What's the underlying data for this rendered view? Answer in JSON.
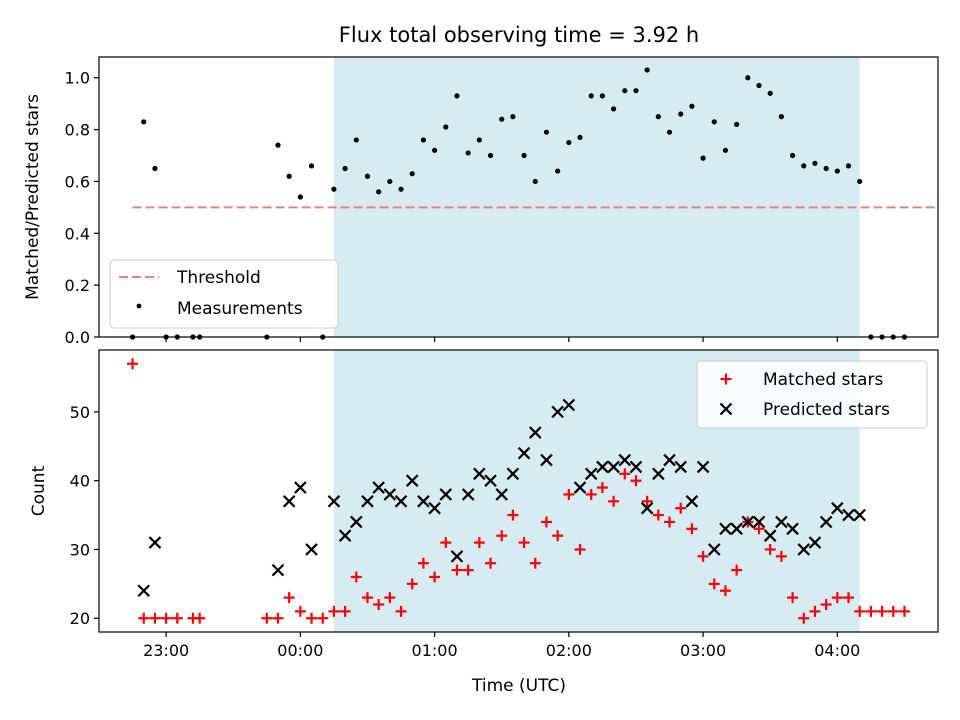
{
  "chart_data": [
    {
      "type": "scatter",
      "title": "Flux total observing time = 3.92 h",
      "ylabel": "Matched/Predicted stars",
      "xlabel": "",
      "xlim": [
        "22:30",
        "04:45"
      ],
      "ylim": [
        0,
        1.08
      ],
      "yticks": [
        "0.0",
        "0.2",
        "0.4",
        "0.6",
        "0.8",
        "1.0"
      ],
      "shaded_interval": [
        "00:15",
        "04:10"
      ],
      "shade_color": "#add8e6",
      "threshold": {
        "name": "Threshold",
        "value": 0.5,
        "x": [
          "22:45",
          "04:45"
        ],
        "color": "#f08080"
      },
      "series": [
        {
          "name": "Measurements",
          "marker": "dot",
          "color": "#000000",
          "points": [
            [
              "22:45",
              0.0
            ],
            [
              "22:50",
              0.83
            ],
            [
              "22:55",
              0.65
            ],
            [
              "23:00",
              0.0
            ],
            [
              "23:05",
              0.0
            ],
            [
              "23:12",
              0.0
            ],
            [
              "23:15",
              0.0
            ],
            [
              "23:45",
              0.0
            ],
            [
              "23:50",
              0.74
            ],
            [
              "23:55",
              0.62
            ],
            [
              "00:00",
              0.54
            ],
            [
              "00:05",
              0.66
            ],
            [
              "00:10",
              0.0
            ],
            [
              "00:15",
              0.57
            ],
            [
              "00:20",
              0.65
            ],
            [
              "00:25",
              0.76
            ],
            [
              "00:30",
              0.62
            ],
            [
              "00:35",
              0.56
            ],
            [
              "00:40",
              0.6
            ],
            [
              "00:45",
              0.57
            ],
            [
              "00:50",
              0.63
            ],
            [
              "00:55",
              0.76
            ],
            [
              "01:00",
              0.72
            ],
            [
              "01:05",
              0.81
            ],
            [
              "01:10",
              0.93
            ],
            [
              "01:15",
              0.71
            ],
            [
              "01:20",
              0.76
            ],
            [
              "01:25",
              0.7
            ],
            [
              "01:30",
              0.84
            ],
            [
              "01:35",
              0.85
            ],
            [
              "01:40",
              0.7
            ],
            [
              "01:45",
              0.6
            ],
            [
              "01:50",
              0.79
            ],
            [
              "01:55",
              0.64
            ],
            [
              "02:00",
              0.75
            ],
            [
              "02:05",
              0.77
            ],
            [
              "02:10",
              0.93
            ],
            [
              "02:15",
              0.93
            ],
            [
              "02:20",
              0.88
            ],
            [
              "02:25",
              0.95
            ],
            [
              "02:30",
              0.95
            ],
            [
              "02:35",
              1.03
            ],
            [
              "02:40",
              0.85
            ],
            [
              "02:45",
              0.79
            ],
            [
              "02:50",
              0.86
            ],
            [
              "02:55",
              0.89
            ],
            [
              "03:00",
              0.69
            ],
            [
              "03:05",
              0.83
            ],
            [
              "03:10",
              0.72
            ],
            [
              "03:15",
              0.82
            ],
            [
              "03:20",
              1.0
            ],
            [
              "03:25",
              0.97
            ],
            [
              "03:30",
              0.94
            ],
            [
              "03:35",
              0.85
            ],
            [
              "03:40",
              0.7
            ],
            [
              "03:45",
              0.66
            ],
            [
              "03:50",
              0.67
            ],
            [
              "03:55",
              0.65
            ],
            [
              "04:00",
              0.64
            ],
            [
              "04:05",
              0.66
            ],
            [
              "04:10",
              0.6
            ],
            [
              "04:15",
              0.0
            ],
            [
              "04:20",
              0.0
            ],
            [
              "04:25",
              0.0
            ],
            [
              "04:30",
              0.0
            ]
          ]
        }
      ],
      "legend": {
        "position": "lower-left",
        "entries": [
          "Threshold",
          "Measurements"
        ]
      }
    },
    {
      "type": "scatter",
      "title": "",
      "xlabel": "Time (UTC)",
      "ylabel": "Count",
      "xlim": [
        "22:30",
        "04:45"
      ],
      "ylim": [
        18,
        59
      ],
      "xticks": [
        "23:00",
        "00:00",
        "01:00",
        "02:00",
        "03:00",
        "04:00"
      ],
      "yticks": [
        "20",
        "30",
        "40",
        "50"
      ],
      "shaded_interval": [
        "00:15",
        "04:10"
      ],
      "shade_color": "#add8e6",
      "series": [
        {
          "name": "Matched stars",
          "marker": "plus",
          "color": "#ff0000",
          "points": [
            [
              "22:45",
              57
            ],
            [
              "22:50",
              20
            ],
            [
              "22:55",
              20
            ],
            [
              "23:00",
              20
            ],
            [
              "23:05",
              20
            ],
            [
              "23:12",
              20
            ],
            [
              "23:15",
              20
            ],
            [
              "23:45",
              20
            ],
            [
              "23:50",
              20
            ],
            [
              "23:55",
              23
            ],
            [
              "00:00",
              21
            ],
            [
              "00:05",
              20
            ],
            [
              "00:10",
              20
            ],
            [
              "00:15",
              21
            ],
            [
              "00:20",
              21
            ],
            [
              "00:25",
              26
            ],
            [
              "00:30",
              23
            ],
            [
              "00:35",
              22
            ],
            [
              "00:40",
              23
            ],
            [
              "00:45",
              21
            ],
            [
              "00:50",
              25
            ],
            [
              "00:55",
              28
            ],
            [
              "01:00",
              26
            ],
            [
              "01:05",
              31
            ],
            [
              "01:10",
              27
            ],
            [
              "01:15",
              27
            ],
            [
              "01:20",
              31
            ],
            [
              "01:25",
              28
            ],
            [
              "01:30",
              32
            ],
            [
              "01:35",
              35
            ],
            [
              "01:40",
              31
            ],
            [
              "01:45",
              28
            ],
            [
              "01:50",
              34
            ],
            [
              "01:55",
              32
            ],
            [
              "02:00",
              38
            ],
            [
              "02:05",
              30
            ],
            [
              "02:10",
              38
            ],
            [
              "02:15",
              39
            ],
            [
              "02:20",
              37
            ],
            [
              "02:25",
              41
            ],
            [
              "02:30",
              40
            ],
            [
              "02:35",
              37
            ],
            [
              "02:40",
              35
            ],
            [
              "02:45",
              34
            ],
            [
              "02:50",
              36
            ],
            [
              "02:55",
              33
            ],
            [
              "03:00",
              29
            ],
            [
              "03:05",
              25
            ],
            [
              "03:10",
              24
            ],
            [
              "03:15",
              27
            ],
            [
              "03:20",
              34
            ],
            [
              "03:25",
              33
            ],
            [
              "03:30",
              30
            ],
            [
              "03:35",
              29
            ],
            [
              "03:40",
              23
            ],
            [
              "03:45",
              20
            ],
            [
              "03:50",
              21
            ],
            [
              "03:55",
              22
            ],
            [
              "04:00",
              23
            ],
            [
              "04:05",
              23
            ],
            [
              "04:10",
              21
            ],
            [
              "04:15",
              21
            ],
            [
              "04:20",
              21
            ],
            [
              "04:25",
              21
            ],
            [
              "04:30",
              21
            ]
          ]
        },
        {
          "name": "Predicted stars",
          "marker": "x",
          "color": "#000000",
          "points": [
            [
              "22:50",
              24
            ],
            [
              "22:55",
              31
            ],
            [
              "23:50",
              27
            ],
            [
              "23:55",
              37
            ],
            [
              "00:00",
              39
            ],
            [
              "00:05",
              30
            ],
            [
              "00:15",
              37
            ],
            [
              "00:20",
              32
            ],
            [
              "00:25",
              34
            ],
            [
              "00:30",
              37
            ],
            [
              "00:35",
              39
            ],
            [
              "00:40",
              38
            ],
            [
              "00:45",
              37
            ],
            [
              "00:50",
              40
            ],
            [
              "00:55",
              37
            ],
            [
              "01:00",
              36
            ],
            [
              "01:05",
              38
            ],
            [
              "01:10",
              29
            ],
            [
              "01:15",
              38
            ],
            [
              "01:20",
              41
            ],
            [
              "01:25",
              40
            ],
            [
              "01:30",
              38
            ],
            [
              "01:35",
              41
            ],
            [
              "01:40",
              44
            ],
            [
              "01:45",
              47
            ],
            [
              "01:50",
              43
            ],
            [
              "01:55",
              50
            ],
            [
              "02:00",
              51
            ],
            [
              "02:05",
              39
            ],
            [
              "02:10",
              41
            ],
            [
              "02:15",
              42
            ],
            [
              "02:20",
              42
            ],
            [
              "02:25",
              43
            ],
            [
              "02:30",
              42
            ],
            [
              "02:35",
              36
            ],
            [
              "02:40",
              41
            ],
            [
              "02:45",
              43
            ],
            [
              "02:50",
              42
            ],
            [
              "02:55",
              37
            ],
            [
              "03:00",
              42
            ],
            [
              "03:05",
              30
            ],
            [
              "03:10",
              33
            ],
            [
              "03:15",
              33
            ],
            [
              "03:20",
              34
            ],
            [
              "03:25",
              34
            ],
            [
              "03:30",
              32
            ],
            [
              "03:35",
              34
            ],
            [
              "03:40",
              33
            ],
            [
              "03:45",
              30
            ],
            [
              "03:50",
              31
            ],
            [
              "03:55",
              34
            ],
            [
              "04:00",
              36
            ],
            [
              "04:05",
              35
            ],
            [
              "04:10",
              35
            ]
          ]
        }
      ],
      "legend": {
        "position": "upper-right",
        "entries": [
          "Matched stars",
          "Predicted stars"
        ]
      }
    }
  ]
}
